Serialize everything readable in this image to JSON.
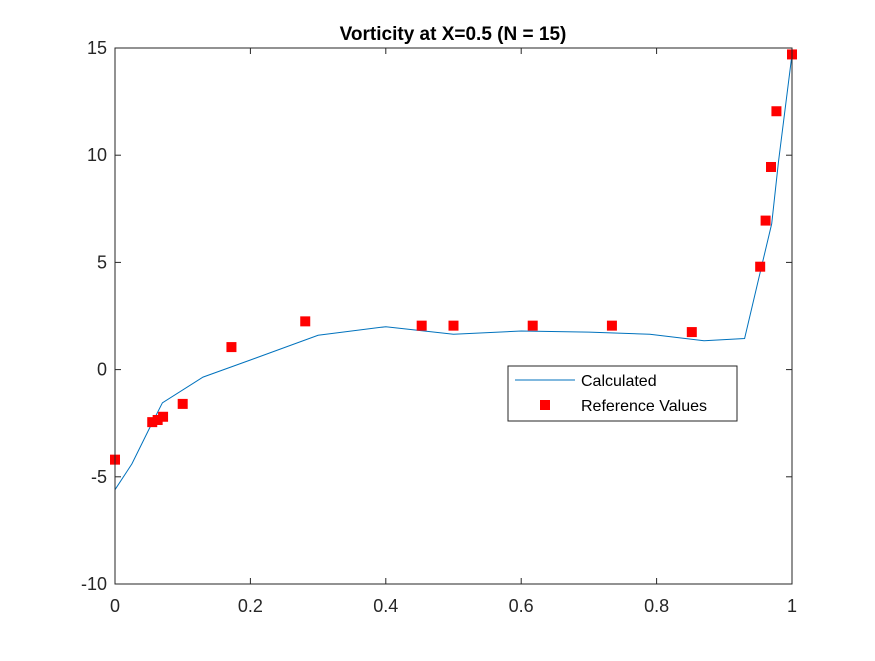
{
  "chart_data": {
    "type": "line",
    "title": "Vorticity at X=0.5 (N = 15)",
    "xlabel": "",
    "ylabel": "",
    "xlim": [
      0,
      1
    ],
    "ylim": [
      -10,
      15
    ],
    "xticks": [
      0,
      0.2,
      0.4,
      0.6,
      0.8,
      1
    ],
    "xtick_labels": [
      "0",
      "0.2",
      "0.4",
      "0.6",
      "0.8",
      "1"
    ],
    "yticks": [
      -10,
      -5,
      0,
      5,
      10,
      15
    ],
    "ytick_labels": [
      "-10",
      "-5",
      "0",
      "5",
      "10",
      "15"
    ],
    "grid": false,
    "legend_position": "right, just below y=0",
    "series": [
      {
        "name": "Calculated",
        "style": "line",
        "color": "#0072BD",
        "x": [
          0,
          0.025,
          0.05,
          0.07,
          0.13,
          0.2,
          0.3,
          0.4,
          0.5,
          0.6,
          0.7,
          0.79,
          0.87,
          0.93,
          0.955,
          0.97,
          0.98,
          1.0
        ],
        "y": [
          -5.6,
          -4.4,
          -2.8,
          -1.55,
          -0.35,
          0.45,
          1.6,
          2.0,
          1.65,
          1.8,
          1.75,
          1.65,
          1.35,
          1.45,
          4.8,
          6.8,
          9.7,
          14.7
        ]
      },
      {
        "name": "Reference Values",
        "style": "marker-square",
        "color": "#FF0000",
        "x": [
          0,
          0.055,
          0.063,
          0.071,
          0.1,
          0.172,
          0.281,
          0.453,
          0.5,
          0.617,
          0.734,
          0.852,
          0.953,
          0.961,
          0.969,
          0.977,
          1.0
        ],
        "y": [
          -4.2,
          -2.45,
          -2.35,
          -2.2,
          -1.6,
          1.05,
          2.25,
          2.05,
          2.05,
          2.05,
          2.05,
          1.75,
          4.8,
          6.95,
          9.45,
          12.05,
          14.7
        ]
      }
    ]
  }
}
